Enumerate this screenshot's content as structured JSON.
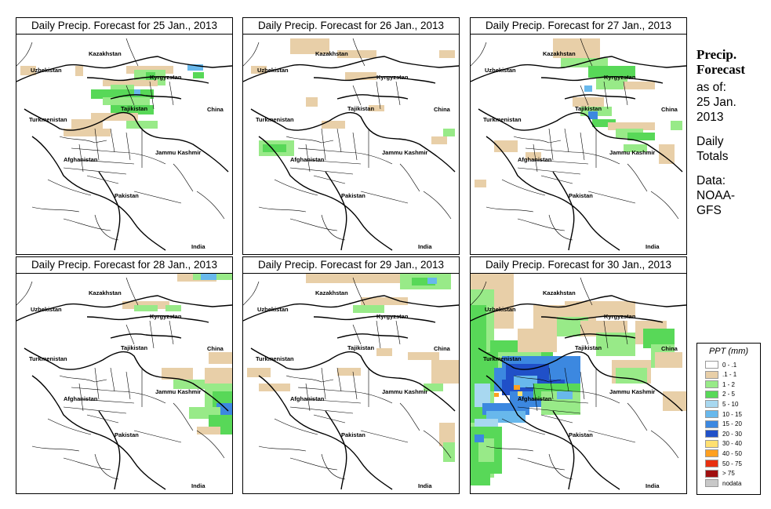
{
  "panels": [
    {
      "title": "Daily Precip. Forecast for  25 Jan., 2013",
      "date": "25 Jan., 2013"
    },
    {
      "title": "Daily Precip. Forecast for  26 Jan., 2013",
      "date": "26 Jan., 2013"
    },
    {
      "title": "Daily Precip. Forecast for  27 Jan., 2013",
      "date": "27 Jan., 2013"
    },
    {
      "title": "Daily Precip. Forecast for  28 Jan., 2013",
      "date": "28 Jan., 2013"
    },
    {
      "title": "Daily Precip. Forecast for  29 Jan., 2013",
      "date": "29 Jan., 2013"
    },
    {
      "title": "Daily Precip. Forecast for  30 Jan., 2013",
      "date": "30 Jan., 2013"
    }
  ],
  "map_labels": {
    "kazakhstan": "Kazakhstan",
    "uzbekistan": "Uzbekistan",
    "kyrgyzstan": "Kyrgyzstan",
    "tajikistan": "Tajikistan",
    "turkmenistan": "Turkmenistan",
    "china": "China",
    "afghanistan": "Afghanistan",
    "jammu_kashmir": "Jammu Kashmir",
    "pakistan": "Pakistan",
    "india": "India"
  },
  "sidebar": {
    "line1": "Precip.",
    "line2": "Forecast",
    "line3": "as of:",
    "line4": "25 Jan.",
    "line5": "2013",
    "line6": "Daily",
    "line7": "Totals",
    "line8": "Data:",
    "line9": "NOAA-",
    "line10": "GFS"
  },
  "legend": {
    "title": "PPT (mm)",
    "items": [
      {
        "label": "0 - .1",
        "color": "#ffffff"
      },
      {
        "label": ".1 - 1",
        "color": "#e8cfa8"
      },
      {
        "label": "1 - 2",
        "color": "#98ea88"
      },
      {
        "label": "2 - 5",
        "color": "#58d858"
      },
      {
        "label": "5 - 10",
        "color": "#a8d8f0"
      },
      {
        "label": "10 - 15",
        "color": "#68b8ec"
      },
      {
        "label": "15 - 20",
        "color": "#3c88e0"
      },
      {
        "label": "20 - 30",
        "color": "#2050c8"
      },
      {
        "label": "30 - 40",
        "color": "#ffe070"
      },
      {
        "label": "40 - 50",
        "color": "#ffa020"
      },
      {
        "label": "50 - 75",
        "color": "#e83010"
      },
      {
        "label": "> 75",
        "color": "#a01010"
      },
      {
        "label": "nodata",
        "color": "#c8c8c8"
      }
    ]
  }
}
